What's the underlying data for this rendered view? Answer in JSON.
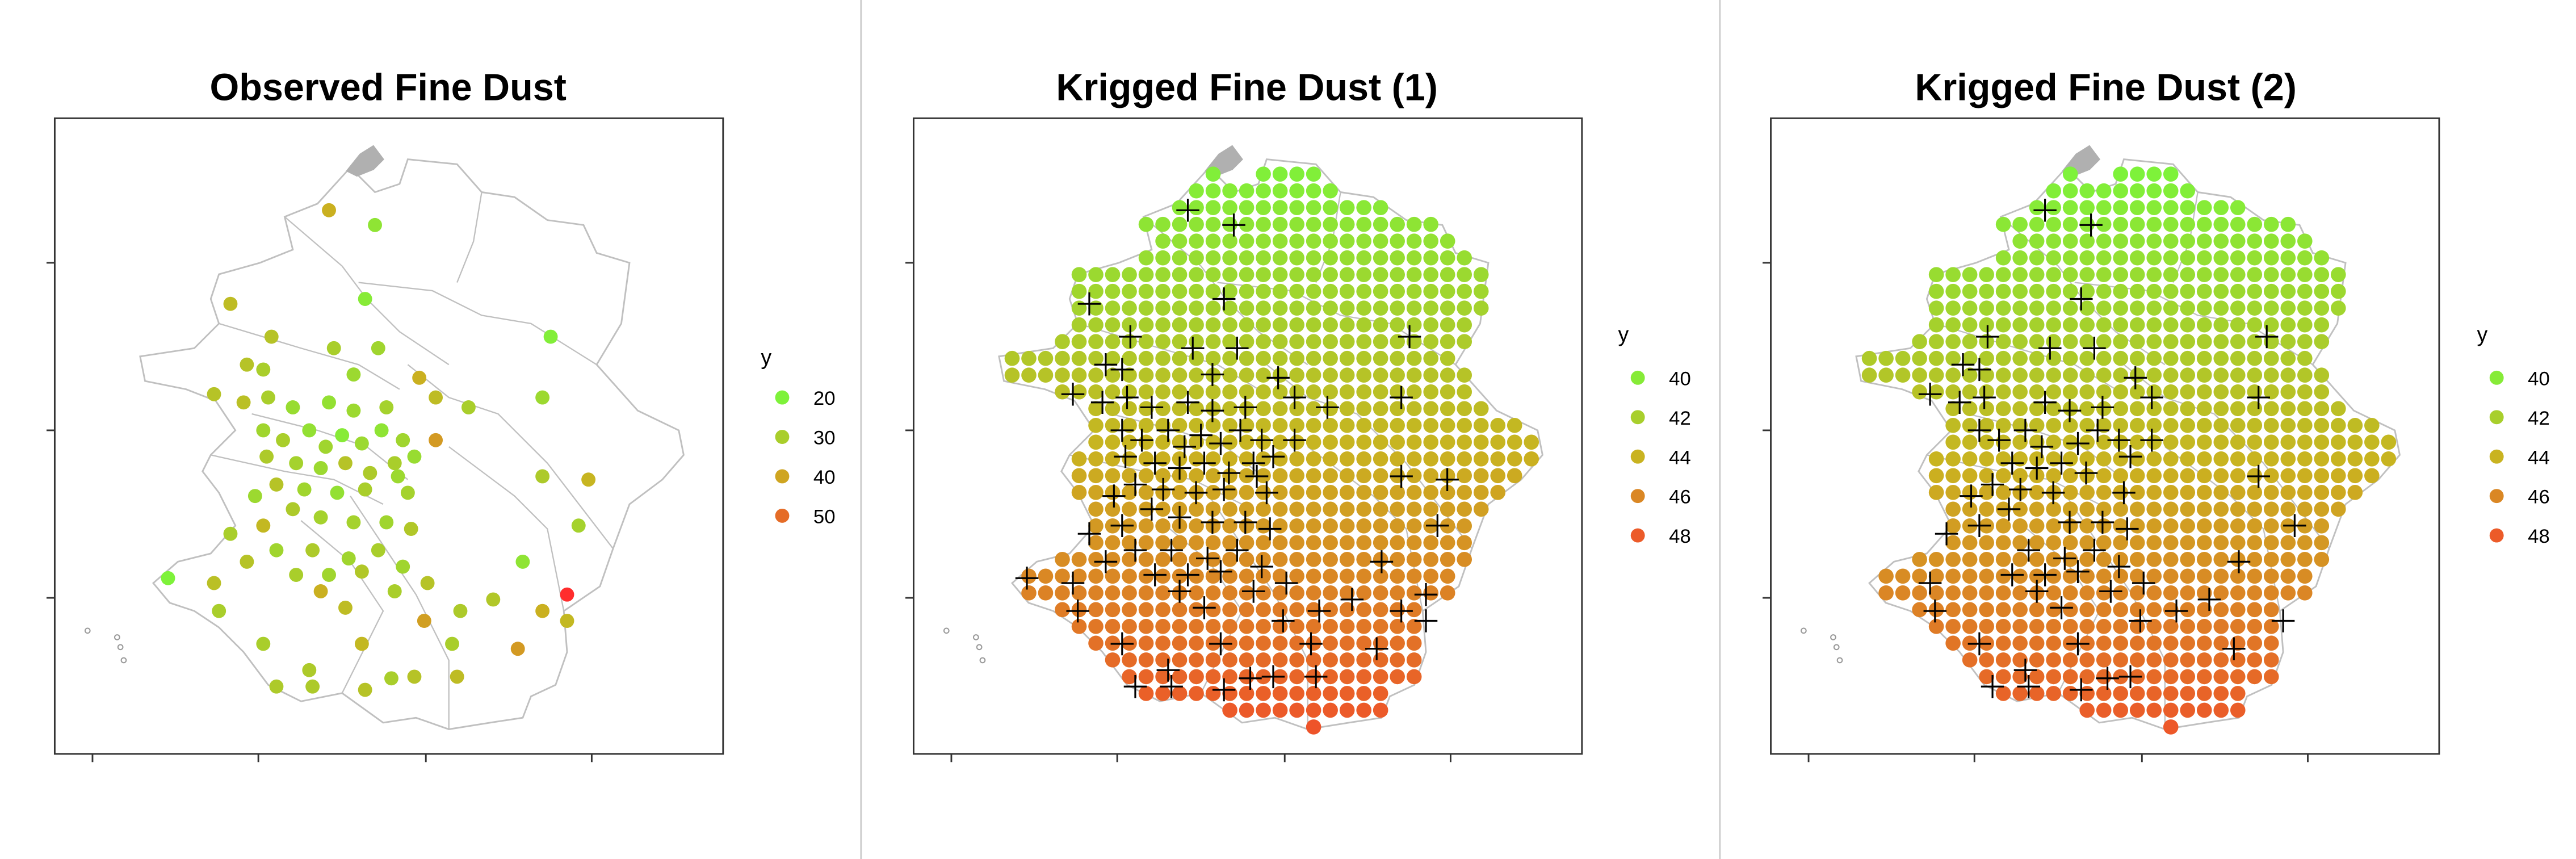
{
  "panels": [
    {
      "title": "Observed Fine Dust"
    },
    {
      "title": "Krigged Fine Dust (1)"
    },
    {
      "title": "Krigged Fine Dust (2)"
    }
  ],
  "legend_title": "y",
  "colors": {
    "low": "#7ef23a",
    "mid": "#c9b320",
    "high": "#f0502a",
    "max": "#ff2d2d",
    "boundary": "#c0c0c0",
    "frame": "#333333",
    "divider": "#cccccc"
  },
  "chart_data": [
    {
      "type": "scatter",
      "title": "Observed Fine Dust",
      "xlabel": "",
      "ylabel": "",
      "legend": {
        "title": "y",
        "position": "right",
        "entries": [
          "20",
          "30",
          "40",
          "50"
        ]
      },
      "color_scale": [
        20,
        55
      ],
      "note": "observed station values, approximate",
      "points": [
        [
          200,
          128,
          38
        ],
        [
          228,
          137,
          24
        ],
        [
          222,
          182,
          22
        ],
        [
          140,
          185,
          35
        ],
        [
          165,
          205,
          33
        ],
        [
          203,
          212,
          30
        ],
        [
          230,
          212,
          28
        ],
        [
          150,
          222,
          33
        ],
        [
          215,
          228,
          27
        ],
        [
          255,
          230,
          38
        ],
        [
          130,
          240,
          33
        ],
        [
          148,
          245,
          34
        ],
        [
          163,
          242,
          30
        ],
        [
          178,
          248,
          26
        ],
        [
          200,
          245,
          25
        ],
        [
          215,
          250,
          27
        ],
        [
          235,
          248,
          29
        ],
        [
          265,
          242,
          35
        ],
        [
          285,
          248,
          30
        ],
        [
          160,
          262,
          28
        ],
        [
          172,
          268,
          30
        ],
        [
          188,
          262,
          25
        ],
        [
          198,
          272,
          28
        ],
        [
          208,
          265,
          22
        ],
        [
          220,
          270,
          27
        ],
        [
          232,
          262,
          24
        ],
        [
          245,
          268,
          28
        ],
        [
          265,
          268,
          42
        ],
        [
          162,
          278,
          31
        ],
        [
          180,
          282,
          29
        ],
        [
          195,
          285,
          27
        ],
        [
          210,
          282,
          33
        ],
        [
          225,
          288,
          31
        ],
        [
          240,
          282,
          30
        ],
        [
          252,
          278,
          26
        ],
        [
          168,
          295,
          33
        ],
        [
          185,
          298,
          28
        ],
        [
          205,
          300,
          25
        ],
        [
          222,
          298,
          30
        ],
        [
          248,
          300,
          29
        ],
        [
          330,
          242,
          27
        ],
        [
          335,
          205,
          21
        ],
        [
          330,
          290,
          31
        ],
        [
          358,
          292,
          37
        ],
        [
          155,
          302,
          27
        ],
        [
          140,
          325,
          30
        ],
        [
          160,
          320,
          36
        ],
        [
          178,
          310,
          31
        ],
        [
          195,
          315,
          29
        ],
        [
          215,
          318,
          29
        ],
        [
          235,
          318,
          28
        ],
        [
          250,
          322,
          32
        ],
        [
          352,
          320,
          29
        ],
        [
          168,
          335,
          28
        ],
        [
          190,
          335,
          31
        ],
        [
          212,
          340,
          28
        ],
        [
          230,
          335,
          30
        ],
        [
          245,
          345,
          28
        ],
        [
          150,
          342,
          33
        ],
        [
          180,
          350,
          30
        ],
        [
          200,
          350,
          28
        ],
        [
          220,
          348,
          32
        ],
        [
          318,
          342,
          24
        ],
        [
          102,
          352,
          20
        ],
        [
          130,
          355,
          34
        ],
        [
          195,
          360,
          38
        ],
        [
          240,
          360,
          30
        ],
        [
          260,
          355,
          33
        ],
        [
          345,
          362,
          55
        ],
        [
          133,
          372,
          30
        ],
        [
          210,
          370,
          35
        ],
        [
          280,
          372,
          31
        ],
        [
          300,
          365,
          32
        ],
        [
          330,
          372,
          38
        ],
        [
          345,
          378,
          36
        ],
        [
          258,
          378,
          41
        ],
        [
          160,
          392,
          30
        ],
        [
          220,
          392,
          36
        ],
        [
          275,
          392,
          30
        ],
        [
          315,
          395,
          42
        ],
        [
          188,
          408,
          31
        ],
        [
          238,
          413,
          30
        ],
        [
          252,
          412,
          33
        ],
        [
          278,
          412,
          35
        ],
        [
          168,
          418,
          31
        ],
        [
          222,
          420,
          33
        ],
        [
          190,
          418,
          31
        ],
        [
          160,
          225,
          30
        ],
        [
          242,
          290,
          27
        ]
      ]
    },
    {
      "type": "scatter",
      "title": "Krigged Fine Dust (1)",
      "xlabel": "",
      "ylabel": "",
      "legend": {
        "title": "y",
        "position": "right",
        "entries": [
          "40",
          "42",
          "44",
          "46",
          "48"
        ]
      },
      "color_scale": [
        39.5,
        48.5
      ],
      "note": "kriging predictions on regular grid (~9 px spacing, plot units 0-435 x 0-430); y increases toward the south; '+' marks observation stations"
    },
    {
      "type": "scatter",
      "title": "Krigged Fine Dust (2)",
      "xlabel": "",
      "ylabel": "",
      "legend": {
        "title": "y",
        "position": "right",
        "entries": [
          "40",
          "42",
          "44",
          "46",
          "48"
        ]
      },
      "color_scale": [
        39.5,
        48.5
      ],
      "note": "second kriging model; similar gradient, slightly different station subset"
    }
  ]
}
